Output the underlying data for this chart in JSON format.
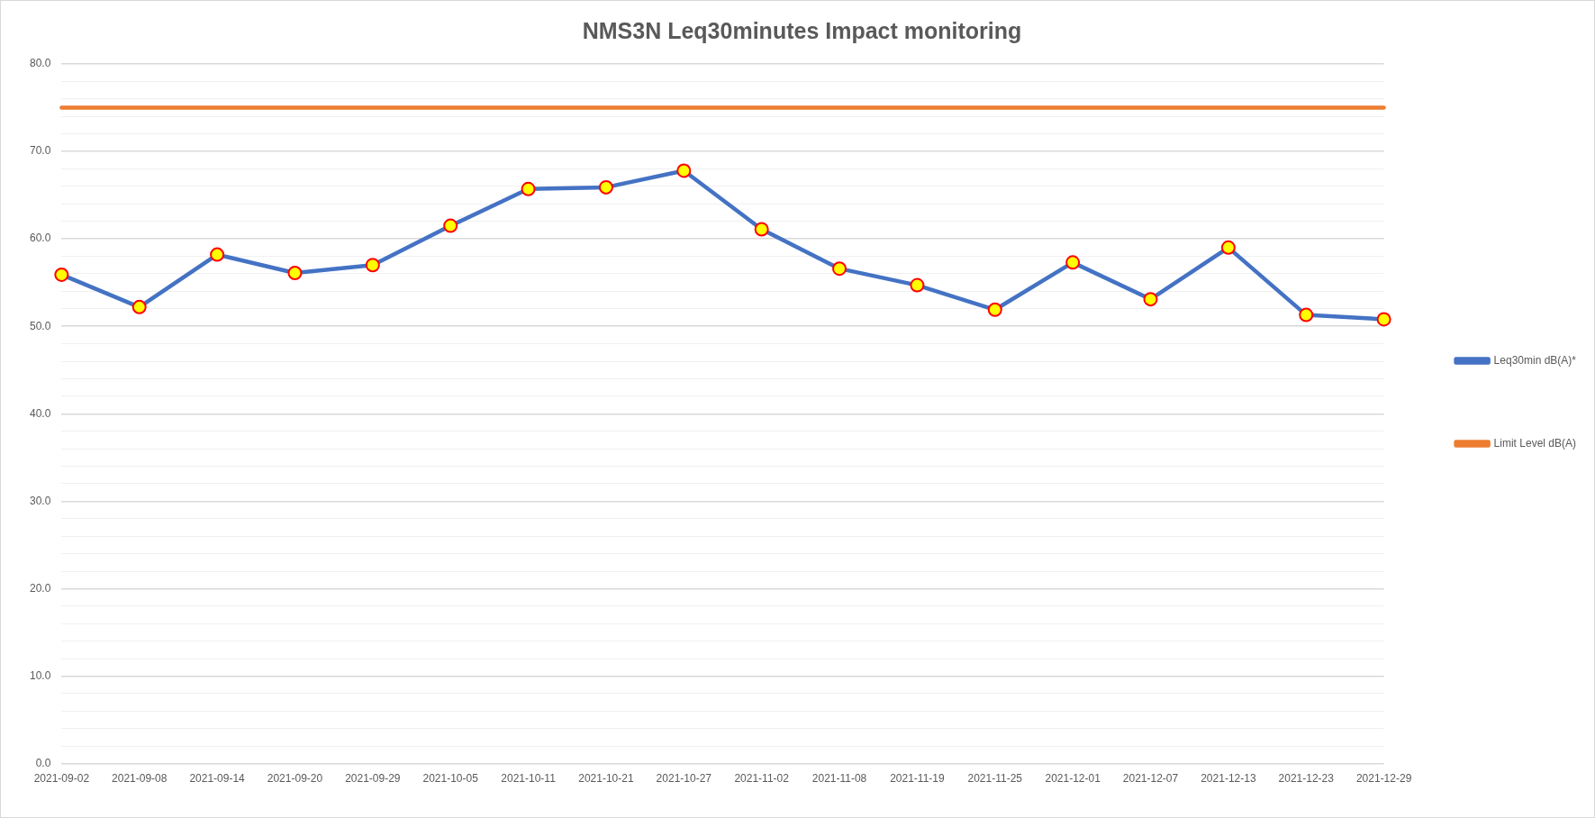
{
  "chart_data": {
    "type": "line",
    "title": "NMS3N Leq30minutes Impact monitoring",
    "categories": [
      "2021-09-02",
      "2021-09-08",
      "2021-09-14",
      "2021-09-20",
      "2021-09-29",
      "2021-10-05",
      "2021-10-11",
      "2021-10-21",
      "2021-10-27",
      "2021-11-02",
      "2021-11-08",
      "2021-11-19",
      "2021-11-25",
      "2021-12-01",
      "2021-12-07",
      "2021-12-13",
      "2021-12-23",
      "2021-12-29"
    ],
    "series": [
      {
        "name": "Leq30min dB(A)*",
        "color": "#4472c4",
        "values": [
          55.9,
          52.2,
          58.2,
          56.1,
          57.0,
          61.5,
          65.7,
          65.9,
          67.8,
          61.1,
          56.6,
          54.7,
          51.9,
          57.3,
          53.1,
          59.0,
          51.3,
          50.8
        ]
      },
      {
        "name": "Limit Level dB(A)",
        "color": "#ed7d31",
        "marker": "none",
        "values": [
          75,
          75,
          75,
          75,
          75,
          75,
          75,
          75,
          75,
          75,
          75,
          75,
          75,
          75,
          75,
          75,
          75,
          75
        ]
      }
    ],
    "ylim": [
      0,
      80
    ],
    "yticks": [
      {
        "value": 0,
        "label": "0.0"
      },
      {
        "value": 2,
        "label": null
      },
      {
        "value": 4,
        "label": null
      },
      {
        "value": 6,
        "label": null
      },
      {
        "value": 8,
        "label": null
      },
      {
        "value": 10,
        "label": "10.0"
      },
      {
        "value": 12,
        "label": null
      },
      {
        "value": 14,
        "label": null
      },
      {
        "value": 16,
        "label": null
      },
      {
        "value": 18,
        "label": null
      },
      {
        "value": 20,
        "label": "20.0"
      },
      {
        "value": 22,
        "label": null
      },
      {
        "value": 24,
        "label": null
      },
      {
        "value": 26,
        "label": null
      },
      {
        "value": 28,
        "label": null
      },
      {
        "value": 30,
        "label": "30.0"
      },
      {
        "value": 32,
        "label": null
      },
      {
        "value": 34,
        "label": null
      },
      {
        "value": 36,
        "label": null
      },
      {
        "value": 38,
        "label": null
      },
      {
        "value": 40,
        "label": "40.0"
      },
      {
        "value": 42,
        "label": null
      },
      {
        "value": 44,
        "label": null
      },
      {
        "value": 46,
        "label": null
      },
      {
        "value": 48,
        "label": null
      },
      {
        "value": 50,
        "label": "50.0"
      },
      {
        "value": 52,
        "label": null
      },
      {
        "value": 54,
        "label": null
      },
      {
        "value": 56,
        "label": null
      },
      {
        "value": 58,
        "label": null
      },
      {
        "value": 60,
        "label": "60.0"
      },
      {
        "value": 62,
        "label": null
      },
      {
        "value": 64,
        "label": null
      },
      {
        "value": 66,
        "label": null
      },
      {
        "value": 68,
        "label": null
      },
      {
        "value": 70,
        "label": "70.0"
      },
      {
        "value": 72,
        "label": null
      },
      {
        "value": 74,
        "label": null
      },
      {
        "value": 76,
        "label": null
      },
      {
        "value": 78,
        "label": null
      },
      {
        "value": 80,
        "label": "80.0"
      }
    ],
    "grid": "y",
    "legend": "right",
    "marker": "circle",
    "line_style": "solid"
  }
}
